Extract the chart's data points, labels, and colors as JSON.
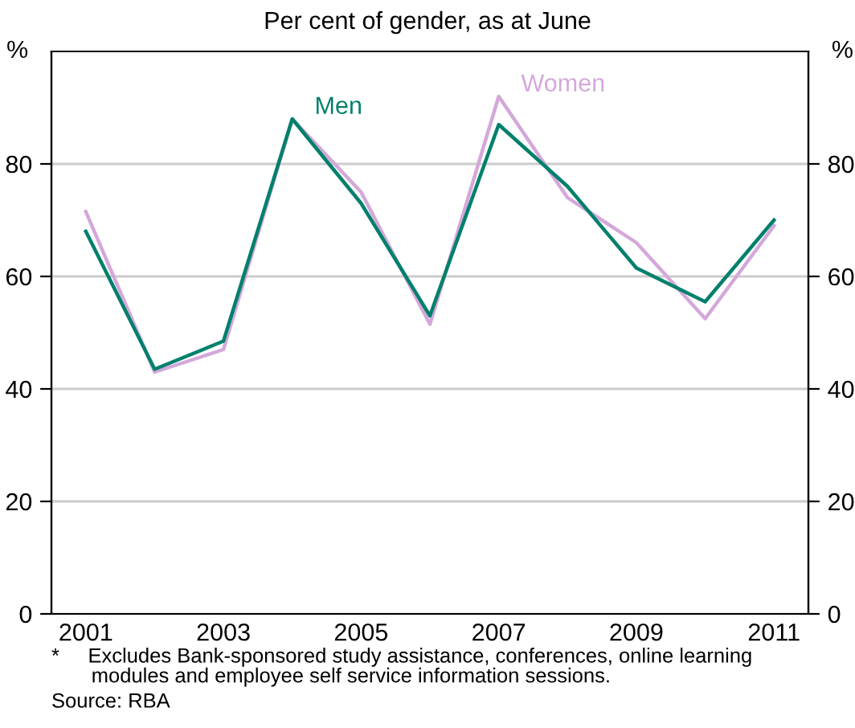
{
  "chart_data": {
    "type": "line",
    "subtitle": "Per cent of gender, as at June",
    "x": [
      2001,
      2002,
      2003,
      2004,
      2005,
      2006,
      2007,
      2008,
      2009,
      2010,
      2011
    ],
    "series": [
      {
        "name": "Women",
        "color": "#d4a8da",
        "values": [
          71.5,
          43,
          47,
          88,
          75,
          51.5,
          92,
          74,
          66,
          52.5,
          69
        ]
      },
      {
        "name": "Men",
        "color": "#00806c",
        "values": [
          68,
          43.5,
          48.5,
          88,
          73,
          53,
          87,
          76,
          61.5,
          55.5,
          70
        ]
      }
    ],
    "xlim": [
      2000.5,
      2011.5
    ],
    "xticks": [
      2001,
      2003,
      2005,
      2007,
      2009,
      2011
    ],
    "ylim": [
      0,
      100
    ],
    "yticks": [
      0,
      20,
      40,
      60,
      80
    ],
    "y2lim": [
      0,
      100
    ],
    "y2ticks": [
      0,
      20,
      40,
      60,
      80
    ],
    "ylabel": "%",
    "y2label": "%",
    "grid": "y",
    "legend": false,
    "marker": "none",
    "line_style": "solid",
    "annotations": [
      "*     Excludes Bank-sponsored study assistance, conferences, online learning\n       modules and employee self service information sessions.",
      "Source: RBA"
    ]
  }
}
